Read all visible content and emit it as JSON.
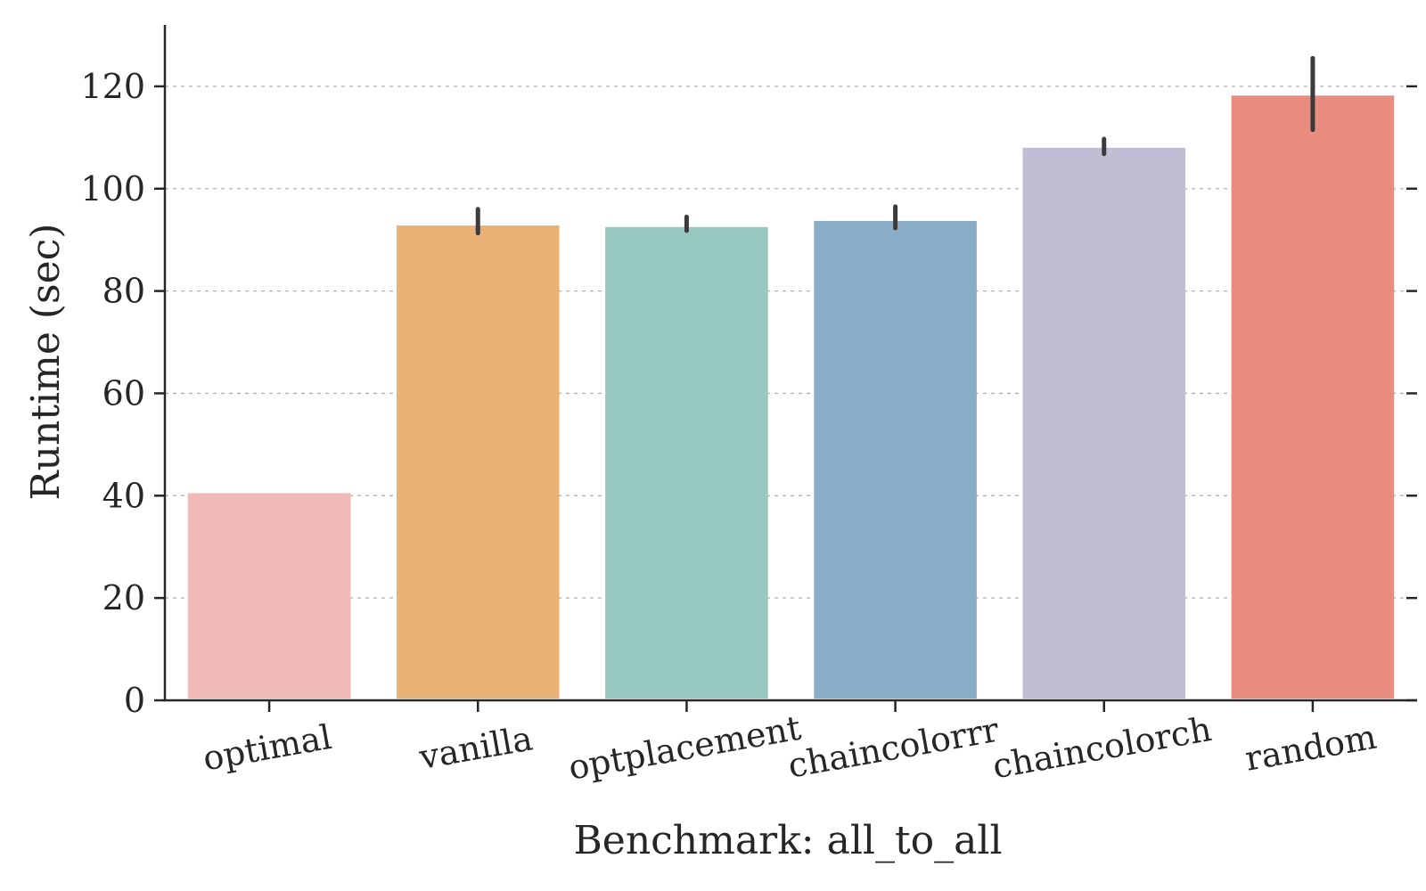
{
  "chart_data": {
    "type": "bar",
    "title": "",
    "xlabel": "Benchmark: all_to_all",
    "ylabel": "Runtime (sec)",
    "categories": [
      "optimal",
      "vanilla",
      "optplacement",
      "chaincolorrr",
      "chaincolorch",
      "random"
    ],
    "values": [
      40.5,
      92.8,
      92.5,
      93.7,
      108.0,
      118.2
    ],
    "error_low": [
      40.5,
      91.3,
      91.8,
      92.3,
      106.8,
      111.5
    ],
    "error_high": [
      40.5,
      96.0,
      94.5,
      96.5,
      109.7,
      125.5
    ],
    "colors": [
      "#f0bab8",
      "#e9b276",
      "#98c9c1",
      "#8aaec8",
      "#c1bdd5",
      "#e98d81"
    ],
    "ylim": [
      0,
      132
    ],
    "yticks": [
      0,
      20,
      40,
      60,
      80,
      100,
      120
    ],
    "grid": "y-dashed"
  }
}
